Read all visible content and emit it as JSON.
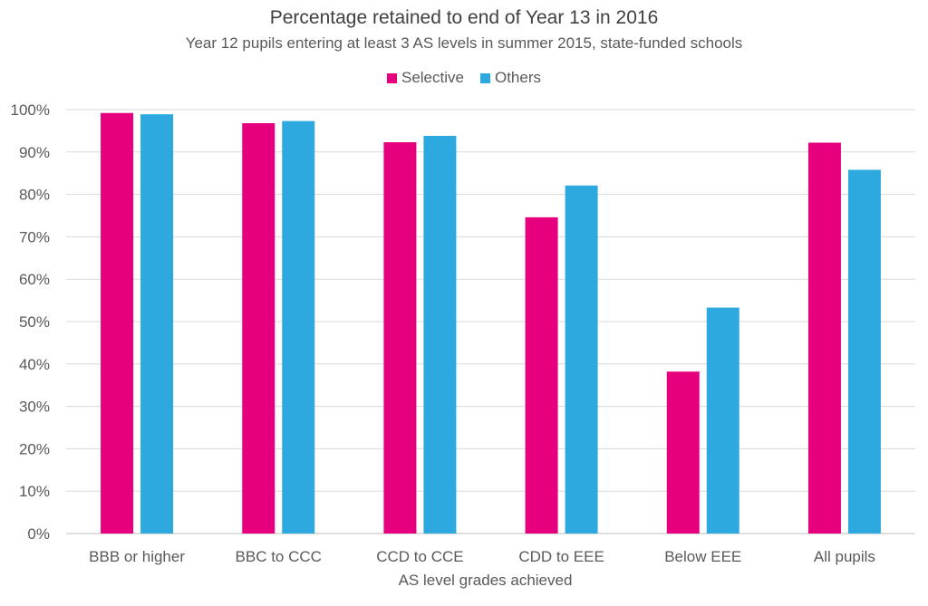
{
  "chart_data": {
    "type": "bar",
    "title": "Percentage retained to end of Year 13 in 2016",
    "subtitle": "Year 12 pupils entering at least 3 AS levels in summer 2015, state-funded schools",
    "xlabel": "AS level grades achieved",
    "ylabel": "",
    "categories": [
      "BBB or higher",
      "BBC to CCC",
      "CCD to CCE",
      "CDD to EEE",
      "Below EEE",
      "All pupils"
    ],
    "series": [
      {
        "name": "Selective",
        "color": "#E6007E",
        "values": [
          99.2,
          96.8,
          92.3,
          74.6,
          38.2,
          92.2
        ]
      },
      {
        "name": "Others",
        "color": "#2EA9E0",
        "values": [
          98.9,
          97.3,
          93.8,
          82.1,
          53.3,
          85.8
        ]
      }
    ],
    "ylim": [
      0,
      100
    ],
    "yticks": [
      "0%",
      "10%",
      "20%",
      "30%",
      "40%",
      "50%",
      "60%",
      "70%",
      "80%",
      "90%",
      "100%"
    ],
    "grid": true,
    "legend_position": "top"
  }
}
